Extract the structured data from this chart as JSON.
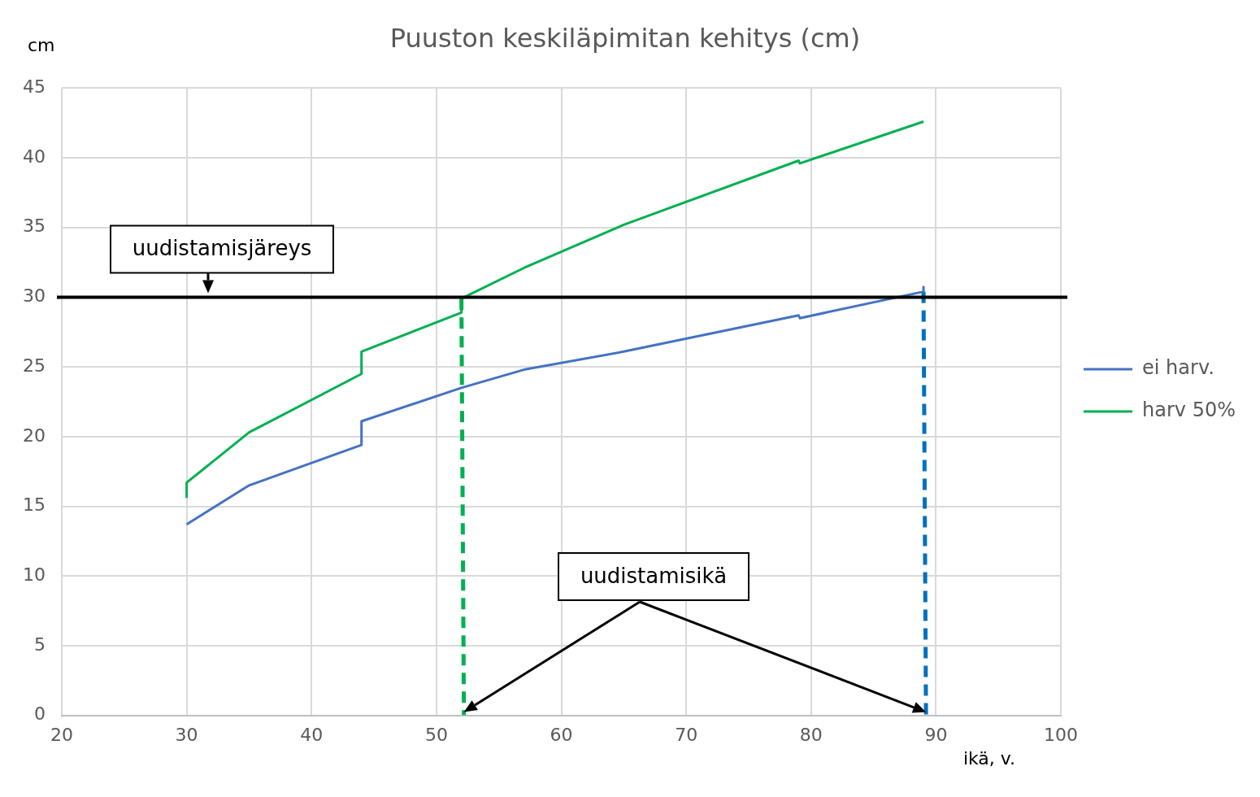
{
  "chart_data": {
    "type": "line",
    "title": "Puuston keskiläpimitan kehitys (cm)",
    "xlabel": "ikä, v.",
    "ylabel": "cm",
    "series": [
      {
        "name": "ei harv.",
        "color": "#4472c4",
        "x": [
          30,
          35,
          44,
          44,
          52,
          57,
          65,
          79,
          79.1,
          89,
          89
        ],
        "values": [
          13.7,
          16.5,
          19.4,
          21.1,
          23.5,
          24.8,
          26.1,
          28.7,
          28.5,
          30.4,
          30.8
        ]
      },
      {
        "name": "harv 50%",
        "color": "#00b050",
        "x": [
          30,
          30,
          35,
          44,
          44,
          52,
          52,
          57,
          65,
          79,
          79.1,
          89
        ],
        "values": [
          15.6,
          16.7,
          20.3,
          24.5,
          26.1,
          28.9,
          29.9,
          32.1,
          35.2,
          39.8,
          39.6,
          42.6
        ]
      },
      {
        "color": "#00b050",
        "line_style": "dashed",
        "x": [
          52,
          52.2
        ],
        "values": [
          29.9,
          0
        ]
      },
      {
        "color": "#0070c0",
        "line_style": "dashed",
        "x": [
          89,
          89.2
        ],
        "values": [
          30.4,
          0
        ]
      }
    ],
    "ref_lines": [
      {
        "axis": "y",
        "value": 30,
        "label": "uudistamisjäreys",
        "color": "#000000"
      }
    ],
    "annotations": [
      "uudistamisikä"
    ],
    "xlim": [
      20,
      100
    ],
    "xticks": [
      20,
      30,
      40,
      50,
      60,
      70,
      80,
      90,
      100
    ],
    "ylim": [
      0,
      45
    ],
    "yticks": [
      0,
      5,
      10,
      15,
      20,
      25,
      30,
      35,
      40,
      45
    ],
    "grid": true,
    "legend": "right",
    "marker": "none",
    "line_style": "solid"
  }
}
